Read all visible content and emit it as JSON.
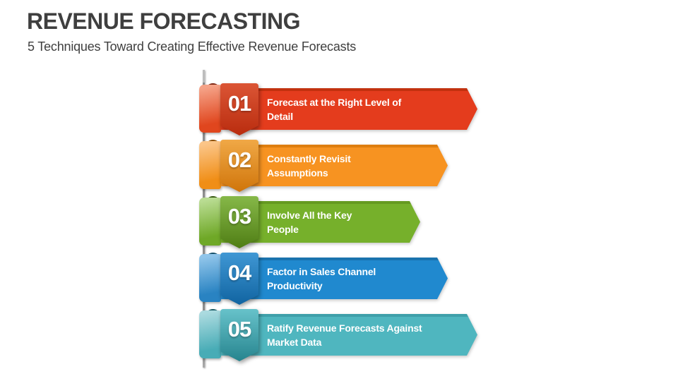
{
  "header": {
    "title": "REVENUE FORECASTING",
    "subtitle": "5 Techniques Toward Creating Effective Revenue Forecasts",
    "colors": {
      "text": "#3f3f3f"
    }
  },
  "items": [
    {
      "number": "01",
      "label": "Forecast at the Right Level of Detail",
      "label_lines": [
        "Forecast at the Right Level of",
        "Detail"
      ],
      "colors": {
        "bar": "#e43c1d",
        "bar-top": "#c2310f",
        "badge-light": "#db5535",
        "badge-dark": "#b92c0e",
        "strip-light": "#f5a287",
        "strip-base": "#e0461e",
        "curl": "#7c2410"
      }
    },
    {
      "number": "02",
      "label": "Constantly Revisit Assumptions",
      "label_lines": [
        "Constantly Revisit",
        "Assumptions"
      ],
      "colors": {
        "bar": "#f79321",
        "bar-top": "#de7e0f",
        "badge-light": "#f0a846",
        "badge-dark": "#d0750a",
        "strip-light": "#fbc588",
        "strip-base": "#f08e16",
        "curl": "#8e5005"
      }
    },
    {
      "number": "03",
      "label": "Involve All the Key People",
      "label_lines": [
        "Involve All the Key",
        "People"
      ],
      "colors": {
        "bar": "#76b02b",
        "bar-top": "#659a21",
        "badge-light": "#86b848",
        "badge-dark": "#4f7d14",
        "strip-light": "#b9dc92",
        "strip-base": "#6fa827",
        "curl": "#33570e"
      }
    },
    {
      "number": "04",
      "label": "Factor in Sales Channel Productivity",
      "label_lines": [
        "Factor in Sales Channel",
        "Productivity"
      ],
      "colors": {
        "bar": "#2089cf",
        "bar-top": "#1a73ae",
        "badge-light": "#3f97d4",
        "badge-dark": "#1164a1",
        "strip-light": "#90c5ea",
        "strip-base": "#2983c2",
        "curl": "#14506b"
      }
    },
    {
      "number": "05",
      "label": "Ratify Revenue Forecasts Against Market Data",
      "label_lines": [
        "Ratify Revenue Forecasts Against",
        "Market Data"
      ],
      "colors": {
        "bar": "#4fb6bf",
        "bar-top": "#3fa0aa",
        "badge-light": "#67c2ca",
        "badge-dark": "#26848e",
        "strip-light": "#aadadf",
        "strip-base": "#48acb6",
        "curl": "#1c5f66"
      }
    }
  ]
}
